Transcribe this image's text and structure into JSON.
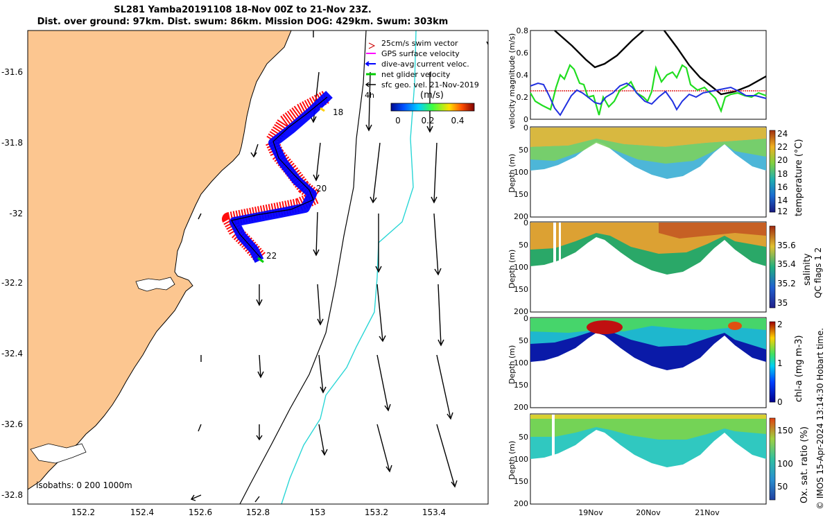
{
  "header": {
    "line1": "SL281 Yamba20191108 18-Nov 00Z to 21-Nov 23Z.",
    "line2": "Dist. over ground: 97km. Dist. swum: 86km. Mission DOG: 429km. Swum: 303km"
  },
  "map": {
    "lat_ticks": [
      "-31.6",
      "-31.8",
      "-32",
      "-32.2",
      "-32.4",
      "-32.6",
      "-32.8"
    ],
    "lon_ticks": [
      "152.2",
      "152.4",
      "152.6",
      "152.8",
      "153",
      "153.2",
      "153.4"
    ],
    "day_labels": [
      "18",
      "20",
      "22"
    ],
    "isobath_label": "isobaths: 0   200  1000m",
    "legend": {
      "items": [
        {
          "label": "25cm/s swim vector",
          "color": "#cc0000"
        },
        {
          "label": "GPS surface velocity",
          "color": "#ff00ff"
        },
        {
          "label": "dive-avg current veloc.",
          "color": "#0000ff"
        },
        {
          "label": "net glider velocity",
          "color": "#00cc00"
        },
        {
          "label": "sfc geo. vel. 21-Nov-2019",
          "color": "#000000"
        }
      ],
      "scale_label": "4h",
      "unit_label": "(m/s)",
      "colorbar_ticks": [
        "0",
        "0.2",
        "0.4"
      ]
    },
    "colors": {
      "land": "#fcc690",
      "ocean": "#ffffff",
      "iso_200": "#000000",
      "iso_1000": "#29d6d6"
    }
  },
  "velocity_panel": {
    "ylabel": "velocity magnitude (m/s)",
    "y_ticks": [
      "0.8",
      "0.6",
      "0.4",
      "0.2",
      "0"
    ]
  },
  "sections": [
    {
      "name": "temperature",
      "ylabel": "Depth (m)",
      "clabel": "temperature (°C)",
      "y_ticks": [
        "0",
        "50",
        "100",
        "150",
        "200"
      ],
      "c_ticks": [
        "24",
        "22",
        "20",
        "18",
        "16",
        "14",
        "12"
      ]
    },
    {
      "name": "salinity",
      "ylabel": "Depth (m)",
      "clabel": "salinity",
      "y_ticks": [
        "0",
        "50",
        "100",
        "150",
        "200"
      ],
      "c_ticks": [
        "35.6",
        "35.4",
        "35.2",
        "35"
      ]
    },
    {
      "name": "chl-a",
      "ylabel": "Depth (m)",
      "clabel": "chl-a (mg m-3)",
      "y_ticks": [
        "0",
        "50",
        "100",
        "150",
        "200"
      ],
      "c_ticks": [
        "2",
        "1",
        "0"
      ]
    },
    {
      "name": "oxygen",
      "ylabel": "Depth (m)",
      "clabel": "Ox. sat. ratio (%)",
      "y_ticks": [
        "50",
        "100",
        "150",
        "200"
      ],
      "c_ticks": [
        "150",
        "100",
        "50"
      ]
    }
  ],
  "time_axis": {
    "labels": [
      "19Nov",
      "20Nov",
      "21Nov"
    ]
  },
  "qc_label": "QC flags 1  2",
  "footer": {
    "stamp": "© IMOS 15-Apr-2024 13:14:30 Hobart time."
  }
}
